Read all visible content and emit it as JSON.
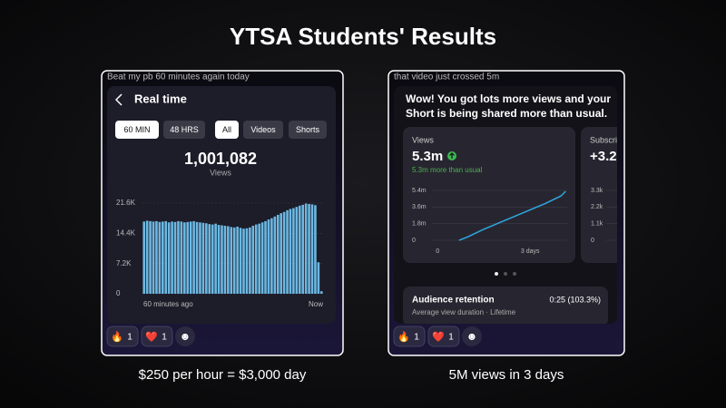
{
  "title": "YTSA Students' Results",
  "left": {
    "note": "Beat my pb 60 minutes again today",
    "header": "Real time",
    "filters": [
      "60 MIN",
      "48 HRS",
      "All",
      "Videos",
      "Shorts"
    ],
    "total": "1,001,082",
    "total_label": "Views",
    "chart": {
      "type": "bar",
      "color": "#6cb8e2",
      "values": [
        17200,
        17400,
        17300,
        17200,
        17300,
        17100,
        17200,
        17300,
        17000,
        17200,
        17100,
        17300,
        17200,
        17000,
        17100,
        17200,
        17300,
        17100,
        17000,
        16900,
        16800,
        16600,
        16500,
        16700,
        16400,
        16300,
        16200,
        16100,
        15900,
        15800,
        16000,
        15700,
        15500,
        15600,
        15800,
        16200,
        16500,
        16700,
        17000,
        17300,
        17700,
        18000,
        18400,
        18800,
        19200,
        19500,
        19900,
        20200,
        20400,
        20700,
        21000,
        21200,
        21500,
        21400,
        21300,
        21100,
        7500,
        600
      ],
      "ylim": [
        0,
        21600
      ],
      "yticks": [
        0,
        {
          "value": 7200,
          "label": "7.2K"
        },
        {
          "value": 14400,
          "label": "14.4K"
        },
        {
          "value": 21600,
          "label": "21.6K"
        }
      ],
      "x_start_label": "60 minutes ago",
      "x_end_label": "Now"
    },
    "reactions": [
      {
        "emoji": "🔥",
        "count": 1
      },
      {
        "emoji": "❤️",
        "count": 1
      }
    ],
    "caption": "$250 per hour = $3,000 day"
  },
  "right": {
    "note": "that video just crossed 5m",
    "header_lines": [
      "Wow! You got lots more views and your",
      "Short is being shared more than usual."
    ],
    "views_label": "Views",
    "views_value": "5.3m",
    "views_note": "5.3m more than usual",
    "chart": {
      "type": "line",
      "color": "#2ea8e0",
      "x": [
        0.7,
        1,
        1.5,
        2,
        2.5,
        3,
        3.5,
        4,
        4.15
      ],
      "values": [
        0,
        400000,
        1200000,
        1900000,
        2600000,
        3300000,
        4000000,
        4800000,
        5300000
      ],
      "xlim": [
        -0.8,
        4.2
      ],
      "xticks": [
        0,
        {
          "value": 3,
          "label": "3 days"
        }
      ],
      "ylim": [
        0,
        5400000
      ],
      "yticks": [
        0,
        {
          "value": 1800000,
          "label": "1.8m"
        },
        {
          "value": 3600000,
          "label": "3.6m"
        },
        {
          "value": 5400000,
          "label": "5.4m"
        }
      ]
    },
    "subscribers_card": {
      "label": "Subscri",
      "value": "+3.2",
      "yticks": [
        0,
        {
          "value": 1100,
          "label": "1.1k"
        },
        {
          "value": 2200,
          "label": "2.2k"
        },
        {
          "value": 3300,
          "label": "3.3k"
        }
      ],
      "ylim": [
        0,
        3300
      ]
    },
    "retention_label": "Audience retention",
    "retention_value": "0:25 (103.3%)",
    "retention_note": "Average view duration · Lifetime",
    "reactions": [
      {
        "emoji": "🔥",
        "count": 1
      },
      {
        "emoji": "❤️",
        "count": 1
      }
    ],
    "caption": "5M views in 3 days"
  }
}
